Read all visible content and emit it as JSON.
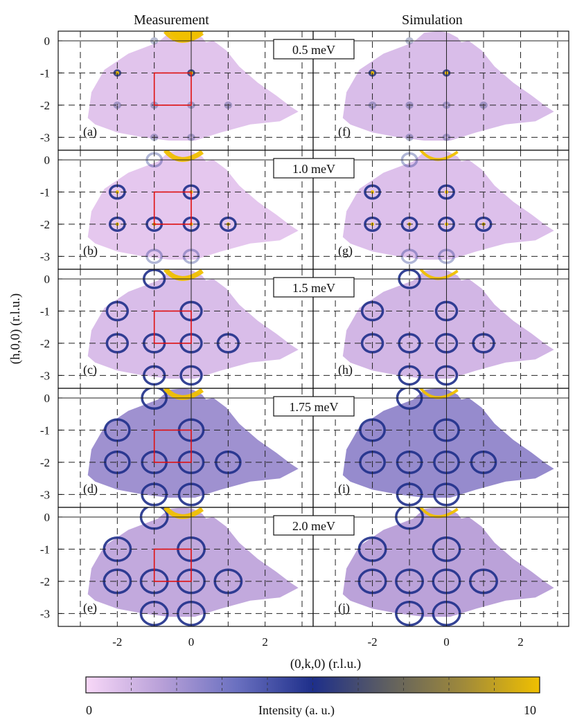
{
  "column_titles": {
    "left": "Measurement",
    "right": "Simulation"
  },
  "xlabel": "(0,k,0) (r.l.u.)",
  "ylabel": "(h,0,0) (r.l.u.)",
  "colorbar": {
    "label": "Intensity (a. u.)",
    "min_label": "0",
    "max_label": "10",
    "colors": [
      "#f8d8f8",
      "#b8a0d8",
      "#6a70c0",
      "#1e2f8a",
      "#606060",
      "#a08a3a",
      "#f0c000"
    ]
  },
  "chart_data": {
    "type": "heatmap",
    "energies": [
      "0.5 meV",
      "1.0 meV",
      "1.5 meV",
      "1.75 meV",
      "2.0 meV"
    ],
    "panel_labels": {
      "measurement": [
        "(a)",
        "(b)",
        "(c)",
        "(d)",
        "(e)"
      ],
      "simulation": [
        "(f)",
        "(g)",
        "(h)",
        "(i)",
        "(j)"
      ]
    },
    "x_ticks": [
      "-2",
      "0",
      "2"
    ],
    "y_ticks": [
      "0",
      "-1",
      "-2",
      "-3"
    ],
    "xlim": [
      -3.6,
      3.3
    ],
    "ylim": [
      -3.4,
      0.3
    ],
    "intensity_range": [
      0,
      10
    ],
    "highlight_box": {
      "k": [
        -1,
        0
      ],
      "h": [
        -2,
        -1
      ],
      "color": "#e01010",
      "panels": "measurement"
    }
  }
}
